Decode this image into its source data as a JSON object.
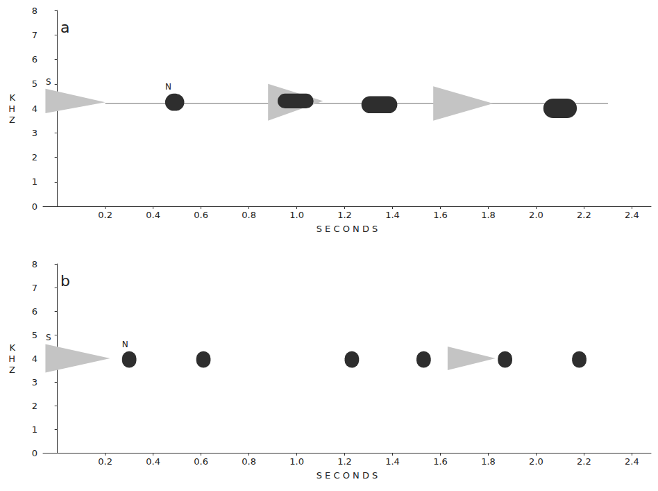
{
  "chart_data": [
    {
      "type": "spectrogram",
      "title": "a",
      "x_label": "S E C O N D S",
      "y_label": "KHZ",
      "xlim": [
        -0.06,
        2.48
      ],
      "xticks": [
        0.2,
        0.4,
        0.6,
        0.8,
        {
          "value": 1,
          "label": "1.0"
        },
        1.2,
        1.4,
        1.6,
        1.8,
        {
          "value": 2,
          "label": "2.0"
        },
        2.2,
        2.4
      ],
      "ylim": [
        0,
        8
      ],
      "yticks": [
        0,
        1,
        2,
        3,
        4,
        5,
        6,
        7,
        8
      ],
      "grid": false,
      "wedge_color": "#c4c4c4",
      "blob_color": "#2e2e2e",
      "trace_color": "#b4b4b4",
      "trace": {
        "x0": 0.2,
        "x1": 2.3,
        "y": 4.2
      },
      "wedges": [
        {
          "x0": -0.05,
          "x1": 0.2,
          "low": 3.8,
          "high": 4.8,
          "tip": 4.25,
          "label": "S"
        },
        {
          "x0": 0.88,
          "x1": 1.11,
          "low": 3.5,
          "high": 5.0,
          "tip": 4.3
        },
        {
          "x0": 1.57,
          "x1": 1.82,
          "low": 3.5,
          "high": 4.9,
          "tip": 4.2
        }
      ],
      "blobs": [
        {
          "x0": 0.45,
          "x1": 0.53,
          "low": 3.9,
          "high": 4.6,
          "label": "N"
        },
        {
          "x0": 0.92,
          "x1": 1.07,
          "low": 4.0,
          "high": 4.6
        },
        {
          "x0": 1.27,
          "x1": 1.42,
          "low": 3.8,
          "high": 4.5
        },
        {
          "x0": 2.03,
          "x1": 2.17,
          "low": 3.6,
          "high": 4.4
        }
      ]
    },
    {
      "type": "spectrogram",
      "title": "b",
      "x_label": "S E C O N D S",
      "y_label": "KHZ",
      "xlim": [
        -0.06,
        2.48
      ],
      "xticks": [
        0.2,
        0.4,
        0.6,
        0.8,
        {
          "value": 1,
          "label": "1.0"
        },
        1.2,
        1.4,
        1.6,
        1.8,
        {
          "value": 2,
          "label": "2.0"
        },
        2.2,
        2.4
      ],
      "ylim": [
        0,
        8
      ],
      "yticks": [
        0,
        1,
        2,
        3,
        4,
        5,
        6,
        7,
        8
      ],
      "grid": false,
      "wedge_color": "#c4c4c4",
      "blob_color": "#2e2e2e",
      "wedges": [
        {
          "x0": -0.05,
          "x1": 0.22,
          "low": 3.4,
          "high": 4.6,
          "tip": 4.0,
          "label": "S"
        },
        {
          "x0": 1.63,
          "x1": 1.83,
          "low": 3.5,
          "high": 4.5,
          "tip": 4.0
        }
      ],
      "blobs": [
        {
          "x0": 0.27,
          "x1": 0.33,
          "low": 3.6,
          "high": 4.3,
          "label": "N"
        },
        {
          "x0": 0.58,
          "x1": 0.64,
          "low": 3.6,
          "high": 4.3
        },
        {
          "x0": 1.2,
          "x1": 1.26,
          "low": 3.6,
          "high": 4.3
        },
        {
          "x0": 1.5,
          "x1": 1.56,
          "low": 3.6,
          "high": 4.3
        },
        {
          "x0": 1.84,
          "x1": 1.9,
          "low": 3.6,
          "high": 4.3
        },
        {
          "x0": 2.15,
          "x1": 2.21,
          "low": 3.6,
          "high": 4.3
        }
      ]
    }
  ]
}
